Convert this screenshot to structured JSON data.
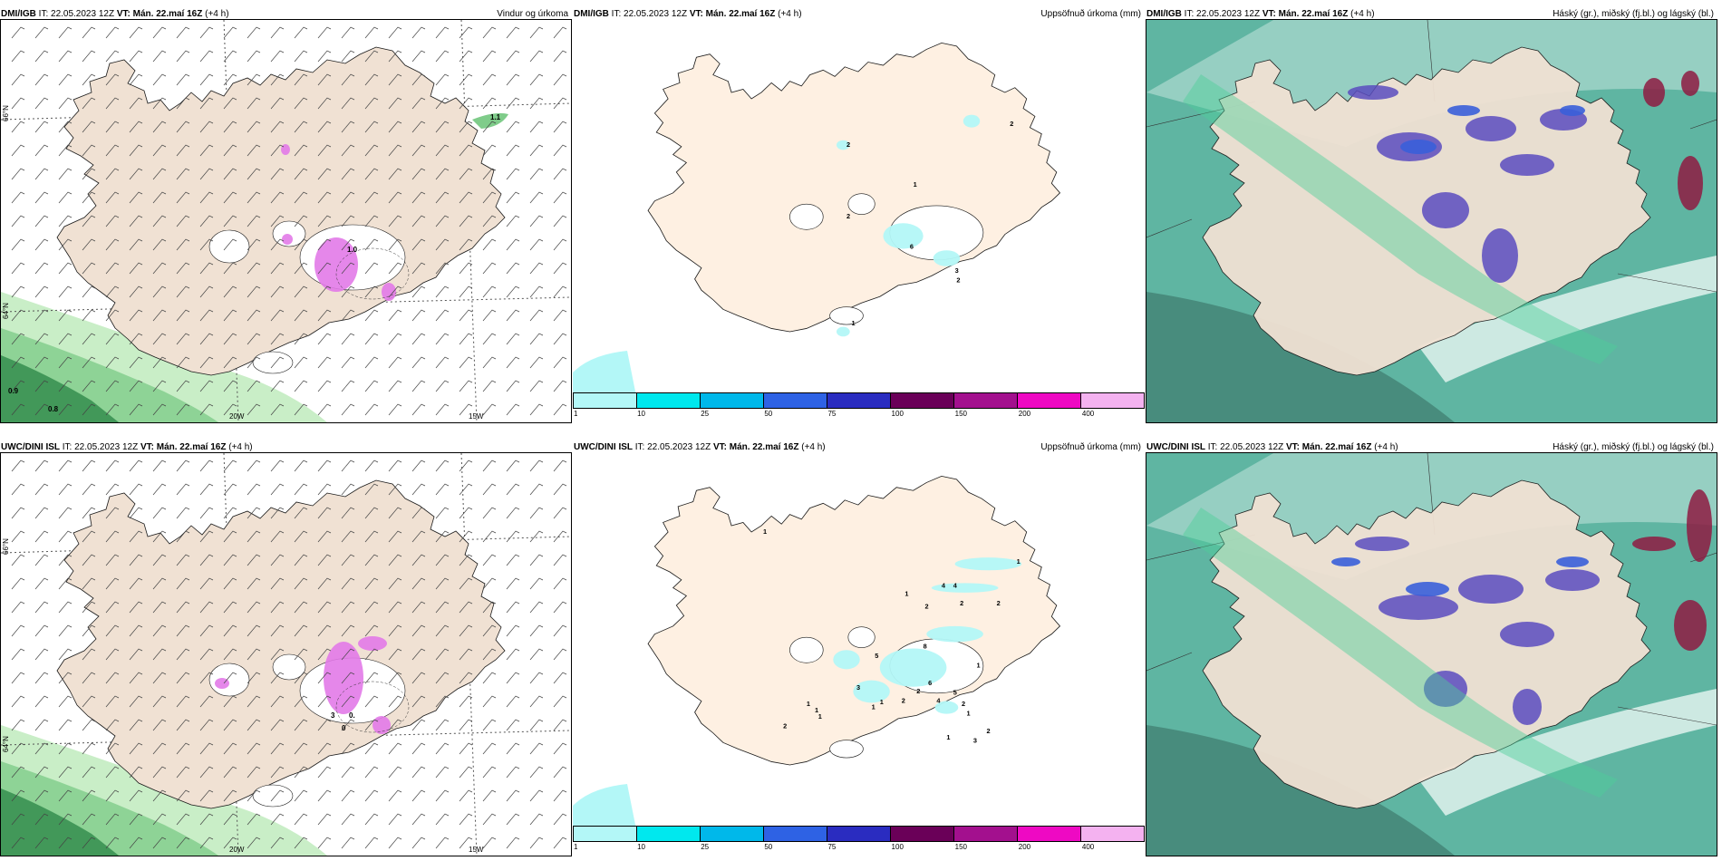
{
  "panels": [
    {
      "id": "p1",
      "source": "DMI/IGB",
      "it": "IT: 22.05.2023 12Z",
      "vt_label": "VT:",
      "vt": "Mán. 22.maí 16Z",
      "lead": "(+4 h)",
      "product": "Vindur og úrkoma",
      "kind": "wind"
    },
    {
      "id": "p2",
      "source": "DMI/IGB",
      "it": "IT: 22.05.2023 12Z",
      "vt_label": "VT:",
      "vt": "Mán. 22.maí 16Z",
      "lead": "(+4 h)",
      "product": "Uppsöfnuð úrkoma (mm)",
      "kind": "precip"
    },
    {
      "id": "p3",
      "source": "DMI/IGB",
      "it": "IT: 22.05.2023 12Z",
      "vt_label": "VT:",
      "vt": "Mán. 22.maí 16Z",
      "lead": "(+4 h)",
      "product": "Háský (gr.), miðský (fj.bl.) og lágský (bl.)",
      "kind": "cloud"
    },
    {
      "id": "p4",
      "source": "UWC/DINI ISL",
      "it": "IT: 22.05.2023 12Z",
      "vt_label": "VT:",
      "vt": "Mán. 22.maí 16Z",
      "lead": "(+4 h)",
      "product": "",
      "kind": "wind"
    },
    {
      "id": "p5",
      "source": "UWC/DINI ISL",
      "it": "IT: 22.05.2023 12Z",
      "vt_label": "VT:",
      "vt": "Mán. 22.maí 16Z",
      "lead": "(+4 h)",
      "product": "Uppsöfnuð úrkoma (mm)",
      "kind": "precip"
    },
    {
      "id": "p6",
      "source": "UWC/DINI ISL",
      "it": "IT: 22.05.2023 12Z",
      "vt_label": "VT:",
      "vt": "Mán. 22.maí 16Z",
      "lead": "(+4 h)",
      "product": "Háský (gr.), miðský (fj.bl.) og lágský (bl.)",
      "kind": "cloud"
    }
  ],
  "grid_labels": {
    "lat_66": "66°N",
    "lat_64": "64°N",
    "lon_20": "20W",
    "lon_15": "15W"
  },
  "wind_values": {
    "p1": [
      "1.1",
      "1.0",
      "0.9",
      "0.8"
    ],
    "p4": [
      "3",
      "0.",
      "0"
    ]
  },
  "precip_values": {
    "p2": [
      "2",
      "2",
      "1",
      "2",
      "6",
      "2",
      "1",
      "3"
    ],
    "p5": [
      "1",
      "1",
      "4",
      "4",
      "2",
      "2",
      "2",
      "1",
      "8",
      "1",
      "5",
      "3",
      "1",
      "2",
      "2",
      "1",
      "1",
      "1",
      "1",
      "2",
      "6",
      "5",
      "4",
      "2",
      "1",
      "2",
      "1",
      "3"
    ]
  },
  "legend": {
    "labels": [
      "1",
      "10",
      "25",
      "50",
      "75",
      "100",
      "150",
      "200",
      "400"
    ],
    "colors": [
      "#b3f7f7",
      "#00e8ee",
      "#00b8ea",
      "#2e62e4",
      "#2a2cc0",
      "#6a0058",
      "#a3108e",
      "#ee09c3",
      "#f4b2f0"
    ]
  },
  "colors": {
    "land": "#f0e1d3",
    "land_precip": "#fef0e2",
    "coast": "#1a1a1a",
    "green_light": "#c9eec7",
    "green_mid": "#7fcc8a",
    "green_dark": "#2f8a4a",
    "pink": "#e27ae8",
    "cloud_teal": "#5fb5a2",
    "cloud_blue": "#3a5fd9",
    "cloud_purple": "#5a4cc0",
    "cloud_maroon": "#8e1b42"
  }
}
